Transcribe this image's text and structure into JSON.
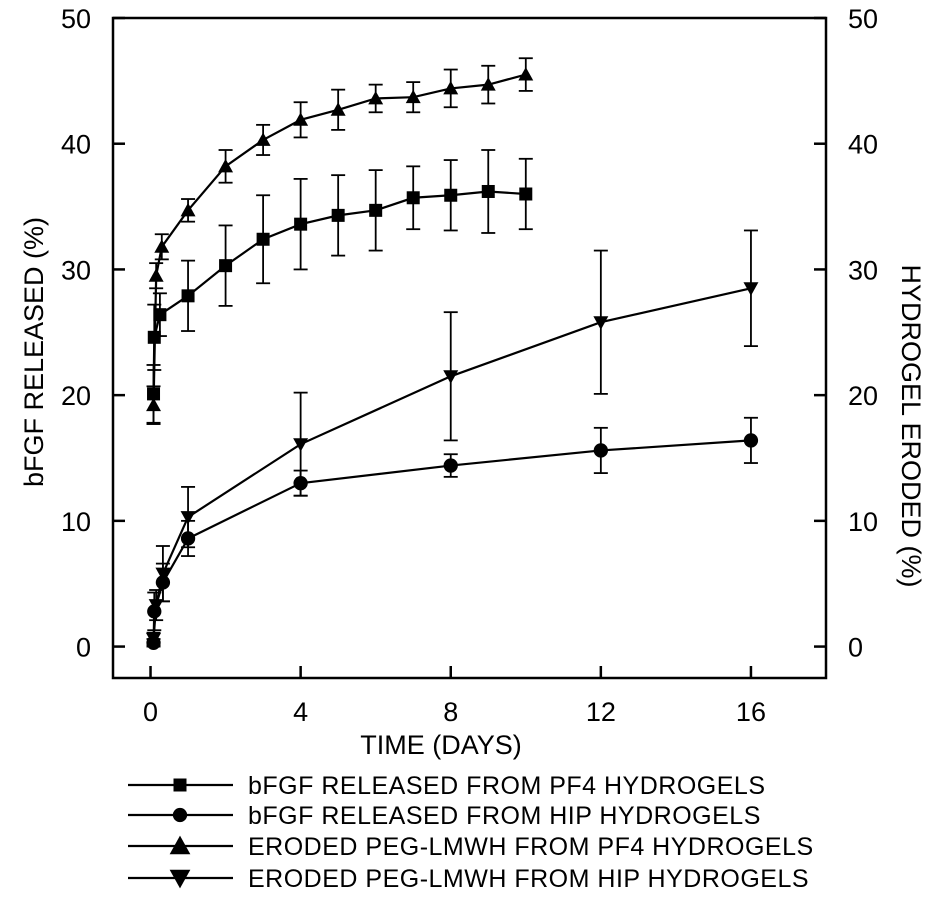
{
  "chart_data": {
    "type": "line",
    "xlabel": "TIME (DAYS)",
    "ylabel": "bFGF RELEASED (%)",
    "y2label": "HYDROGEL ERODED (%)",
    "xlim": [
      -1,
      18
    ],
    "ylim": [
      -2.5,
      50
    ],
    "y2lim": [
      -2.5,
      50
    ],
    "xticks": [
      0,
      4,
      8,
      12,
      16
    ],
    "yticks": [
      0,
      10,
      20,
      30,
      40,
      50
    ],
    "y2ticks": [
      0,
      10,
      20,
      30,
      40,
      50
    ],
    "grid": false,
    "legend_position": "bottom",
    "series": [
      {
        "name": "bFGF RELEASED FROM PF4 HYDROGELS",
        "marker": "square",
        "axis": "left",
        "x": [
          0.08,
          0.1,
          0.25,
          1,
          2,
          3,
          4,
          5,
          6,
          7,
          8,
          9,
          10
        ],
        "y": [
          20.1,
          24.6,
          26.4,
          27.9,
          30.3,
          32.4,
          33.6,
          34.3,
          34.7,
          35.7,
          35.9,
          36.2,
          36.0
        ],
        "err": [
          2.3,
          2.6,
          1.7,
          2.8,
          3.2,
          3.5,
          3.6,
          3.2,
          3.2,
          2.5,
          2.8,
          3.3,
          2.8
        ]
      },
      {
        "name": "bFGF RELEASED FROM HIP HYDROGELS",
        "marker": "circle",
        "axis": "left",
        "x": [
          0.08,
          0.1,
          0.33,
          1,
          4,
          8,
          12,
          16
        ],
        "y": [
          0.3,
          2.8,
          5.1,
          8.6,
          13.0,
          14.4,
          15.6,
          16.4
        ],
        "err": [
          0.3,
          1.5,
          1.5,
          1.4,
          1.0,
          0.9,
          1.8,
          1.8
        ]
      },
      {
        "name": "ERODED PEG-LMWH FROM PF4 HYDROGELS",
        "marker": "triangle-up",
        "axis": "right",
        "x": [
          0.08,
          0.15,
          0.3,
          1,
          2,
          3,
          4,
          5,
          6,
          7,
          8,
          9,
          10
        ],
        "y": [
          19.2,
          29.5,
          31.8,
          34.7,
          38.2,
          40.3,
          41.9,
          42.7,
          43.6,
          43.7,
          44.4,
          44.7,
          45.5
        ],
        "err": [
          1.5,
          1.0,
          1.0,
          0.9,
          1.3,
          1.2,
          1.4,
          1.6,
          1.1,
          1.2,
          1.5,
          1.5,
          1.3
        ]
      },
      {
        "name": "ERODED PEG-LMWH FROM HIP HYDROGELS",
        "marker": "triangle-down",
        "axis": "right",
        "x": [
          0.08,
          0.15,
          0.33,
          1,
          4,
          8,
          12,
          16
        ],
        "y": [
          0.6,
          3.3,
          5.8,
          10.3,
          16.1,
          21.5,
          25.8,
          28.5
        ],
        "err": [
          0.5,
          1.2,
          2.2,
          2.4,
          4.1,
          5.1,
          5.7,
          4.6
        ]
      }
    ]
  }
}
